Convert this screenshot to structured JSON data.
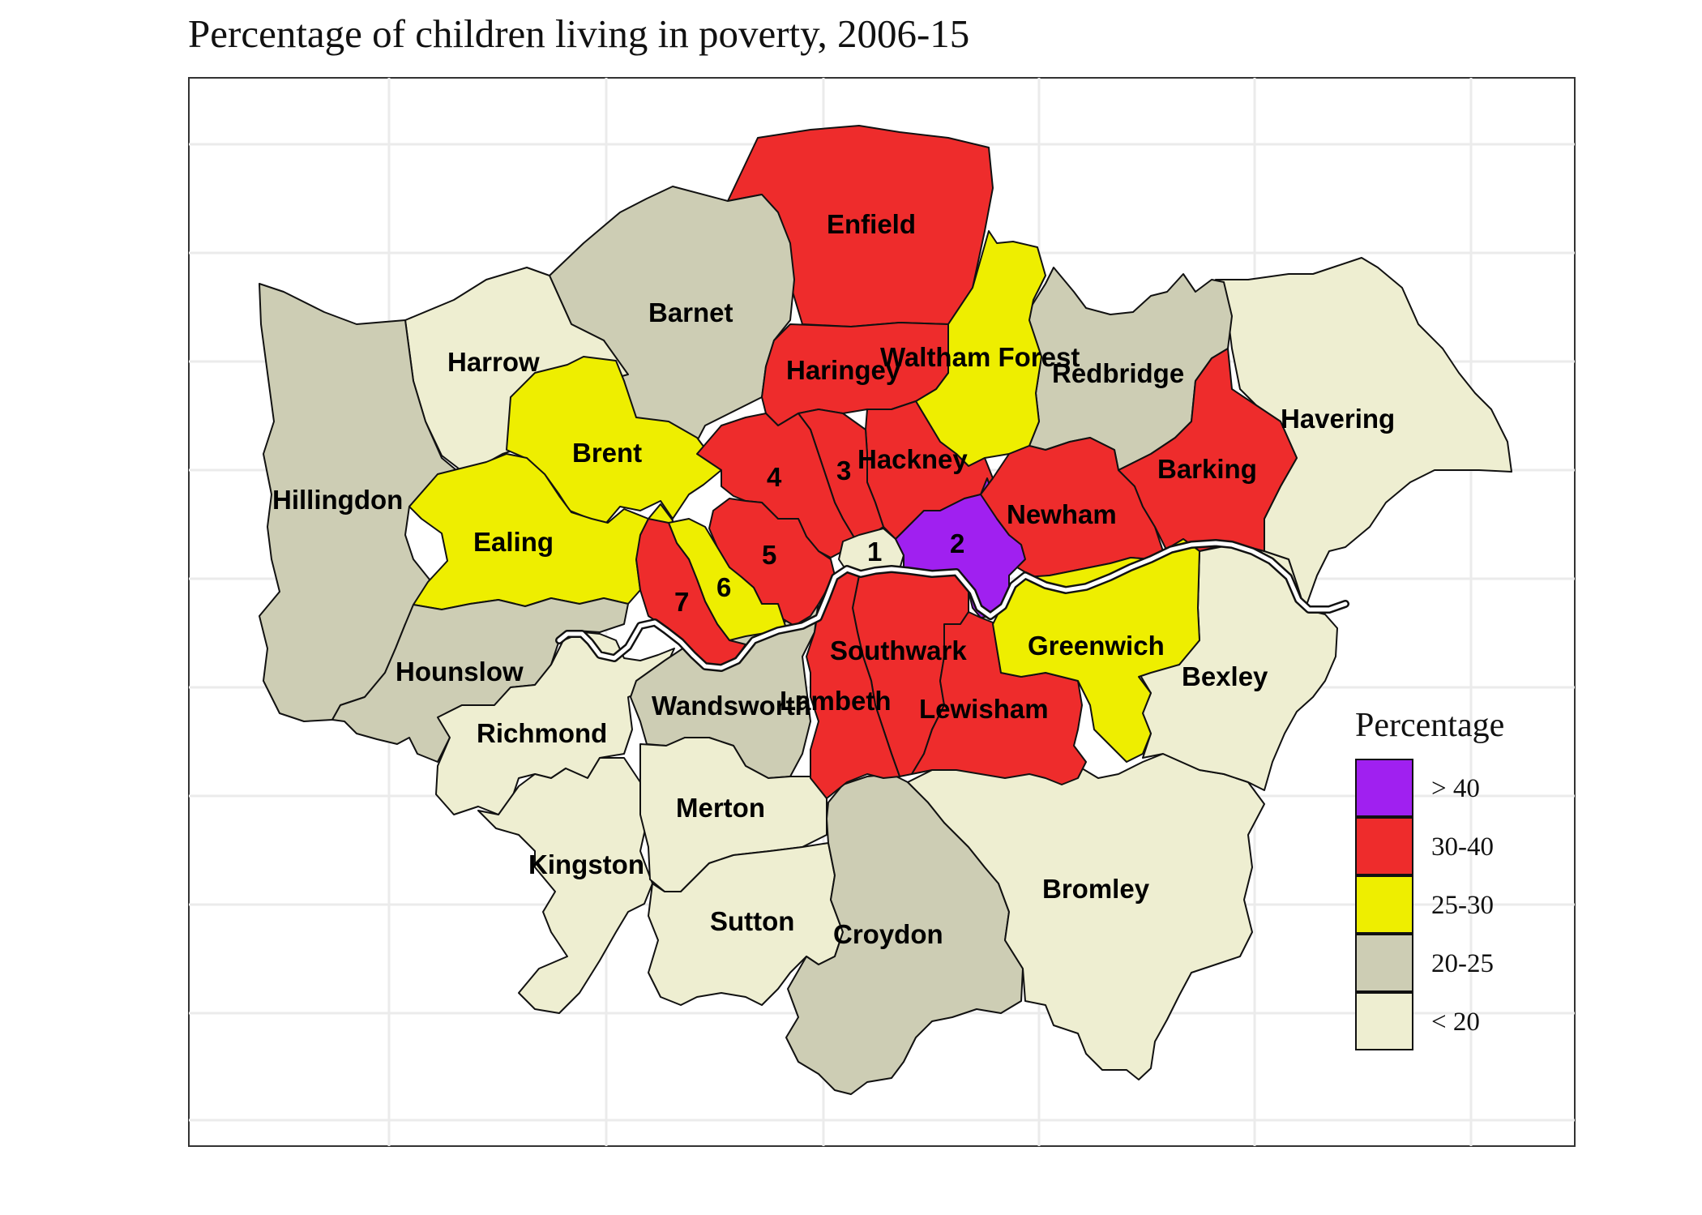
{
  "title": "Percentage of children living in poverty, 2006-15",
  "colors": {
    "gt40": "#a020f0",
    "c30_40": "#ee2c2c",
    "c25_30": "#eeee00",
    "c20_25": "#cdcdb4",
    "lt20": "#eeeed1",
    "river": "#ffffff"
  },
  "legend": {
    "title": "Percentage",
    "placement": "right",
    "items": [
      {
        "label": "> 40",
        "color": "#a020f0"
      },
      {
        "label": "30-40",
        "color": "#ee2c2c"
      },
      {
        "label": "25-30",
        "color": "#eeee00"
      },
      {
        "label": "20-25",
        "color": "#cdcdb4"
      },
      {
        "label": "< 20",
        "color": "#eeeed1"
      }
    ]
  },
  "boroughs": [
    {
      "name": "Enfield",
      "category": "30-40"
    },
    {
      "name": "Barnet",
      "category": "20-25"
    },
    {
      "name": "Harrow",
      "category": "< 20"
    },
    {
      "name": "Hillingdon",
      "category": "20-25"
    },
    {
      "name": "Brent",
      "category": "25-30"
    },
    {
      "name": "Ealing",
      "category": "25-30"
    },
    {
      "name": "Haringey",
      "category": "30-40"
    },
    {
      "name": "Waltham Forest",
      "category": "25-30"
    },
    {
      "name": "Redbridge",
      "category": "20-25"
    },
    {
      "name": "Havering",
      "category": "< 20"
    },
    {
      "name": "Hackney",
      "category": "30-40"
    },
    {
      "name": "Newham",
      "category": "30-40"
    },
    {
      "name": "Barking",
      "category": "30-40"
    },
    {
      "name": "Hounslow",
      "category": "20-25"
    },
    {
      "name": "Richmond",
      "category": "< 20"
    },
    {
      "name": "Wandsworth",
      "category": "20-25"
    },
    {
      "name": "Southwark",
      "category": "30-40"
    },
    {
      "name": "Lambeth",
      "category": "30-40"
    },
    {
      "name": "Lewisham",
      "category": "30-40"
    },
    {
      "name": "Greenwich",
      "category": "25-30"
    },
    {
      "name": "Bexley",
      "category": "< 20"
    },
    {
      "name": "Merton",
      "category": "< 20"
    },
    {
      "name": "Kingston",
      "category": "< 20"
    },
    {
      "name": "Sutton",
      "category": "< 20"
    },
    {
      "name": "Croydon",
      "category": "20-25"
    },
    {
      "name": "Bromley",
      "category": "< 20"
    },
    {
      "name": "1",
      "category": "< 20"
    },
    {
      "name": "2",
      "category": "> 40"
    },
    {
      "name": "3",
      "category": "30-40"
    },
    {
      "name": "4",
      "category": "30-40"
    },
    {
      "name": "5",
      "category": "30-40"
    },
    {
      "name": "6",
      "category": "25-30"
    },
    {
      "name": "7",
      "category": "30-40"
    }
  ]
}
